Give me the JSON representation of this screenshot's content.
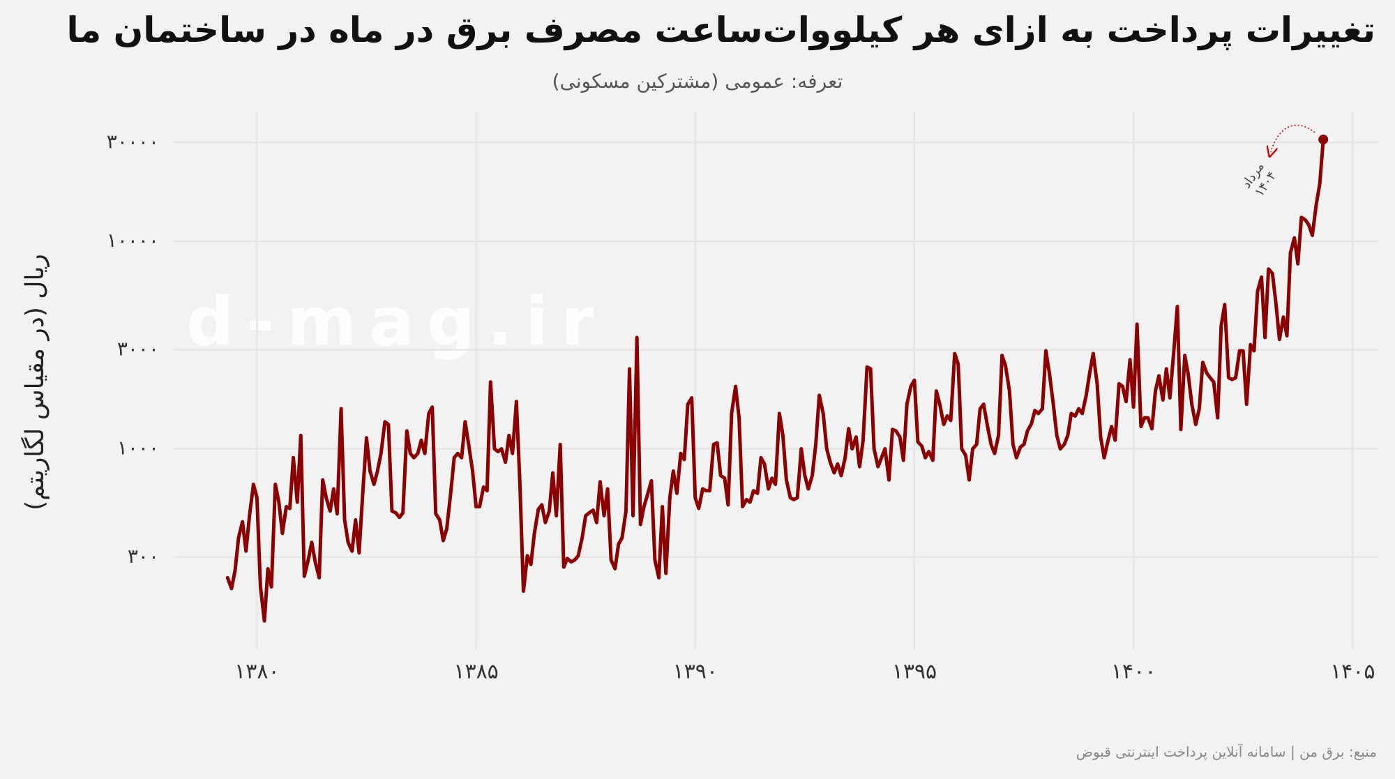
{
  "chart_data": {
    "type": "line",
    "title": "تغییرات پرداخت به ازای هر کیلووات‌ساعت مصرف برق در ماه در ساختمان ما",
    "subtitle": "تعرفه: عمومی (مشترکین مسکونی)",
    "y_label": "ریال (در مقیاس لگاریتم)",
    "caption": "منبع: برق من | سامانه آنلاین پرداخت اینترنتی قبوض",
    "watermark": "d-mag.ir",
    "annotation": [
      "مرداد",
      "۱۴۰۴"
    ],
    "color": "#8b0000",
    "ylog": true,
    "grid": true,
    "xlim": [
      1378.1,
      1405.6
    ],
    "ylim": [
      108,
      42600
    ],
    "xticks": [
      {
        "value": 1380,
        "label": "۱۳۸۰"
      },
      {
        "value": 1385,
        "label": "۱۳۸۵"
      },
      {
        "value": 1390,
        "label": "۱۳۹۰"
      },
      {
        "value": 1395,
        "label": "۱۳۹۵"
      },
      {
        "value": 1400,
        "label": "۱۴۰۰"
      },
      {
        "value": 1405,
        "label": "۱۴۰۵"
      }
    ],
    "yticks": [
      {
        "value": 300,
        "label": "۳۰۰"
      },
      {
        "value": 1000,
        "label": "۱۰۰۰"
      },
      {
        "value": 3000,
        "label": "۳۰۰۰"
      },
      {
        "value": 10000,
        "label": "۱۰۰۰۰"
      },
      {
        "value": 30000,
        "label": "۳۰۰۰۰"
      }
    ],
    "x": [
      1379.33,
      1379.42,
      1379.5,
      1379.58,
      1379.67,
      1379.75,
      1379.83,
      1379.92,
      1380,
      1380.08,
      1380.17,
      1380.25,
      1380.33,
      1380.42,
      1380.5,
      1380.58,
      1380.67,
      1380.75,
      1380.83,
      1380.92,
      1381,
      1381.08,
      1381.17,
      1381.25,
      1381.33,
      1381.42,
      1381.5,
      1381.58,
      1381.67,
      1381.75,
      1381.83,
      1381.92,
      1382,
      1382.08,
      1382.17,
      1382.25,
      1382.33,
      1382.42,
      1382.5,
      1382.58,
      1382.67,
      1382.75,
      1382.83,
      1382.92,
      1383,
      1383.08,
      1383.17,
      1383.25,
      1383.33,
      1383.42,
      1383.5,
      1383.58,
      1383.67,
      1383.75,
      1383.83,
      1383.92,
      1384,
      1384.08,
      1384.17,
      1384.25,
      1384.33,
      1384.42,
      1384.5,
      1384.58,
      1384.67,
      1384.75,
      1384.83,
      1384.92,
      1385,
      1385.08,
      1385.17,
      1385.25,
      1385.33,
      1385.42,
      1385.5,
      1385.58,
      1385.67,
      1385.75,
      1385.83,
      1385.92,
      1386,
      1386.08,
      1386.17,
      1386.25,
      1386.33,
      1386.42,
      1386.5,
      1386.58,
      1386.67,
      1386.75,
      1386.83,
      1386.92,
      1387,
      1387.08,
      1387.17,
      1387.25,
      1387.33,
      1387.42,
      1387.5,
      1387.58,
      1387.67,
      1387.75,
      1387.83,
      1387.92,
      1388,
      1388.08,
      1388.17,
      1388.25,
      1388.33,
      1388.42,
      1388.5,
      1388.58,
      1388.67,
      1388.75,
      1388.83,
      1388.92,
      1389,
      1389.08,
      1389.17,
      1389.25,
      1389.33,
      1389.42,
      1389.5,
      1389.58,
      1389.67,
      1389.75,
      1389.83,
      1389.92,
      1390,
      1390.08,
      1390.17,
      1390.25,
      1390.33,
      1390.42,
      1390.5,
      1390.58,
      1390.67,
      1390.75,
      1390.83,
      1390.92,
      1391,
      1391.08,
      1391.17,
      1391.25,
      1391.33,
      1391.42,
      1391.5,
      1391.58,
      1391.67,
      1391.75,
      1391.83,
      1391.92,
      1392,
      1392.08,
      1392.17,
      1392.25,
      1392.33,
      1392.42,
      1392.5,
      1392.58,
      1392.67,
      1392.75,
      1392.83,
      1392.92,
      1393,
      1393.08,
      1393.17,
      1393.25,
      1393.33,
      1393.42,
      1393.5,
      1393.58,
      1393.67,
      1393.75,
      1393.83,
      1393.92,
      1394,
      1394.08,
      1394.17,
      1394.25,
      1394.33,
      1394.42,
      1394.5,
      1394.58,
      1394.67,
      1394.75,
      1394.83,
      1394.92,
      1395,
      1395.08,
      1395.17,
      1395.25,
      1395.33,
      1395.42,
      1395.5,
      1395.58,
      1395.67,
      1395.75,
      1395.83,
      1395.92,
      1396,
      1396.08,
      1396.17,
      1396.25,
      1396.33,
      1396.42,
      1396.5,
      1396.58,
      1396.67,
      1396.75,
      1396.83,
      1396.92,
      1397,
      1397.08,
      1397.17,
      1397.25,
      1397.33,
      1397.42,
      1397.5,
      1397.58,
      1397.67,
      1397.75,
      1397.83,
      1397.92,
      1398,
      1398.08,
      1398.17,
      1398.25,
      1398.33,
      1398.42,
      1398.5,
      1398.58,
      1398.67,
      1398.75,
      1398.83,
      1398.92,
      1399,
      1399.08,
      1399.17,
      1399.25,
      1399.33,
      1399.42,
      1399.5,
      1399.58,
      1399.67,
      1399.75,
      1399.83,
      1399.92,
      1400,
      1400.08,
      1400.17,
      1400.25,
      1400.33,
      1400.42,
      1400.5,
      1400.58,
      1400.67,
      1400.75,
      1400.83,
      1400.92,
      1401,
      1401.08,
      1401.17,
      1401.25,
      1401.33,
      1401.42,
      1401.5,
      1401.58,
      1401.67,
      1401.75,
      1401.83,
      1401.92,
      1402,
      1402.08,
      1402.17,
      1402.25,
      1402.33,
      1402.42,
      1402.5,
      1402.58,
      1402.67,
      1402.75,
      1402.83,
      1402.92,
      1403,
      1403.08,
      1403.17,
      1403.25,
      1403.33,
      1403.42,
      1403.5,
      1403.58,
      1403.67,
      1403.75,
      1403.83,
      1403.92,
      1404,
      1404.08,
      1404.17,
      1404.25,
      1404.33
    ],
    "values": [
      239,
      212,
      258,
      372,
      445,
      321,
      476,
      674,
      581,
      216,
      148,
      264,
      216,
      674,
      553,
      391,
      526,
      516,
      906,
      553,
      1160,
      243,
      291,
      354,
      285,
      239,
      708,
      581,
      501,
      641,
      486,
      1560,
      454,
      354,
      321,
      454,
      315,
      641,
      1130,
      781,
      674,
      781,
      950,
      1350,
      1310,
      501,
      491,
      467,
      491,
      1220,
      950,
      906,
      950,
      1100,
      950,
      1480,
      1590,
      486,
      454,
      361,
      411,
      610,
      906,
      950,
      906,
      1350,
      1050,
      781,
      526,
      526,
      654,
      628,
      2100,
      1000,
      970,
      1000,
      862,
      1160,
      950,
      1690,
      674,
      206,
      305,
      277,
      391,
      511,
      537,
      441,
      501,
      766,
      476,
      1050,
      269,
      296,
      285,
      291,
      305,
      372,
      476,
      491,
      506,
      441,
      694,
      476,
      641,
      291,
      264,
      347,
      372,
      501,
      2430,
      476,
      3440,
      432,
      526,
      610,
      701,
      291,
      239,
      526,
      251,
      581,
      781,
      610,
      950,
      888,
      1640,
      1760,
      581,
      516,
      641,
      628,
      628,
      1050,
      1070,
      743,
      722,
      537,
      1480,
      2000,
      1410,
      526,
      569,
      553,
      628,
      610,
      906,
      845,
      641,
      722,
      674,
      1480,
      1160,
      708,
      581,
      569,
      581,
      1000,
      743,
      641,
      743,
      1050,
      1810,
      1480,
      1000,
      862,
      766,
      845,
      743,
      906,
      1250,
      1000,
      1140,
      820,
      1100,
      2480,
      2430,
      1000,
      820,
      906,
      1000,
      708,
      1240,
      1220,
      1140,
      880,
      1640,
      2000,
      2140,
      1080,
      1030,
      906,
      970,
      880,
      1900,
      1640,
      1310,
      1440,
      1370,
      2880,
      2560,
      1000,
      930,
      708,
      1000,
      1050,
      1560,
      1640,
      1280,
      1050,
      950,
      1160,
      2820,
      2510,
      1900,
      1050,
      906,
      1020,
      1050,
      1220,
      1320,
      1530,
      1480,
      1560,
      2970,
      2320,
      1640,
      1160,
      1000,
      1050,
      1160,
      1480,
      1440,
      1560,
      1480,
      1810,
      2320,
      2880,
      2060,
      1140,
      906,
      1100,
      1280,
      1100,
      2060,
      2000,
      1690,
      2690,
      1590,
      3990,
      1280,
      1410,
      1410,
      1250,
      1900,
      2250,
      1720,
      2430,
      1760,
      2970,
      4860,
      1240,
      2820,
      2270,
      1640,
      1310,
      1560,
      2610,
      2320,
      2200,
      2100,
      1410,
      3910,
      4960,
      2200,
      2160,
      2200,
      2970,
      2970,
      1640,
      3180,
      2970,
      5750,
      6730,
      3440,
      7360,
      7000,
      5010,
      3370,
      4320,
      3510,
      8800,
      10400,
      7800,
      13050,
      12700,
      12000,
      10700,
      15100,
      19000,
      31000
    ]
  }
}
